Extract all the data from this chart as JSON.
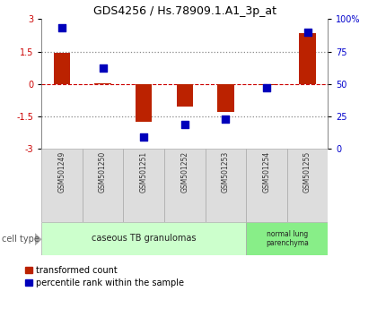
{
  "title": "GDS4256 / Hs.78909.1.A1_3p_at",
  "samples": [
    "GSM501249",
    "GSM501250",
    "GSM501251",
    "GSM501252",
    "GSM501253",
    "GSM501254",
    "GSM501255"
  ],
  "transformed_count": [
    1.45,
    0.05,
    -1.75,
    -1.05,
    -1.3,
    -0.05,
    2.35
  ],
  "percentile_rank": [
    93,
    62,
    9,
    19,
    23,
    47,
    90
  ],
  "ylim_left": [
    -3,
    3
  ],
  "ylim_right": [
    0,
    100
  ],
  "yticks_left": [
    -3,
    -1.5,
    0,
    1.5,
    3
  ],
  "ytick_labels_left": [
    "-3",
    "-1.5",
    "0",
    "1.5",
    "3"
  ],
  "yticks_right": [
    0,
    25,
    50,
    75,
    100
  ],
  "ytick_labels_right": [
    "0",
    "25",
    "50",
    "75",
    "100%"
  ],
  "bar_color": "#bb2200",
  "dot_color": "#0000bb",
  "dotted_line_color": "#888888",
  "hline_color": "#cc0000",
  "group1_samples": 5,
  "group2_samples": 2,
  "group1_label": "caseous TB granulomas",
  "group2_label": "normal lung\nparenchyma",
  "group1_color": "#ccffcc",
  "group2_color": "#88ee88",
  "cell_type_label": "cell type",
  "legend1": "transformed count",
  "legend2": "percentile rank within the sample",
  "bar_width": 0.4,
  "tick_label_color_left": "#cc0000",
  "tick_label_color_right": "#0000cc",
  "bg_color": "#ffffff"
}
